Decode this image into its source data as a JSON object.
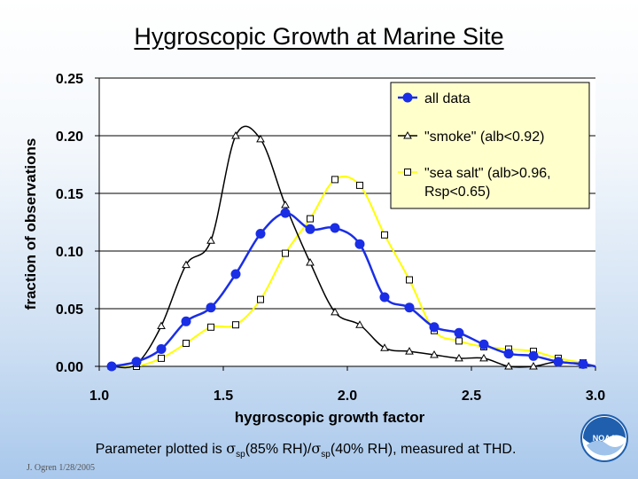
{
  "title": "Hygroscopic Growth at Marine Site",
  "caption": {
    "prefix": "Parameter plotted is ",
    "sigma": "σ",
    "sub1": "sp",
    "mid": "(85% RH)/",
    "sub2": "sp",
    "suffix": "(40% RH), measured at THD."
  },
  "credit": "J. Ogren 1/28/2005",
  "logo_text": "NOAA",
  "chart_data": {
    "type": "line",
    "title": "Hygroscopic Growth at Marine Site",
    "xlabel": "hygroscopic growth factor",
    "ylabel": "fraction of observations",
    "xlim": [
      1.0,
      3.0
    ],
    "ylim": [
      0.0,
      0.25
    ],
    "xticks": [
      "1.0",
      "1.5",
      "2.0",
      "2.5",
      "3.0"
    ],
    "yticks": [
      "0.00",
      "0.05",
      "0.10",
      "0.15",
      "0.20",
      "0.25"
    ],
    "grid": "horizontal",
    "legend_position": "top-right",
    "colors": {
      "all_data": "#1a2ee6",
      "smoke": "#000000",
      "sea_salt": "#ffff00",
      "plot_bg": "#ffffff",
      "legend_bg": "#ffffcc"
    },
    "series": [
      {
        "name": "all data",
        "marker": "circle",
        "x": [
          1.05,
          1.15,
          1.25,
          1.35,
          1.45,
          1.55,
          1.65,
          1.75,
          1.85,
          1.95,
          2.05,
          2.15,
          2.25,
          2.35,
          2.45,
          2.55,
          2.65,
          2.75,
          2.85,
          2.95
        ],
        "y": [
          0.0,
          0.004,
          0.015,
          0.039,
          0.051,
          0.08,
          0.115,
          0.133,
          0.119,
          0.12,
          0.106,
          0.06,
          0.051,
          0.034,
          0.029,
          0.019,
          0.011,
          0.009,
          0.004,
          0.002
        ]
      },
      {
        "name": "\"smoke\" (alb<0.92)",
        "marker": "triangle",
        "x": [
          1.05,
          1.15,
          1.25,
          1.35,
          1.45,
          1.55,
          1.65,
          1.75,
          1.85,
          1.95,
          2.05,
          2.15,
          2.25,
          2.35,
          2.45,
          2.55,
          2.65,
          2.75,
          2.85,
          2.95
        ],
        "y": [
          0.0,
          0.002,
          0.035,
          0.088,
          0.109,
          0.2,
          0.197,
          0.14,
          0.09,
          0.047,
          0.036,
          0.016,
          0.013,
          0.01,
          0.007,
          0.007,
          0.0,
          0.0,
          0.004,
          0.001
        ]
      },
      {
        "name": "\"sea salt\" (alb>0.96,",
        "name_line2": "Rsp<0.65)",
        "marker": "square",
        "x": [
          1.05,
          1.15,
          1.25,
          1.35,
          1.45,
          1.55,
          1.65,
          1.75,
          1.85,
          1.95,
          2.05,
          2.15,
          2.25,
          2.35,
          2.45,
          2.55,
          2.65,
          2.75,
          2.85,
          2.95
        ],
        "y": [
          0.0,
          0.0,
          0.007,
          0.02,
          0.034,
          0.036,
          0.058,
          0.098,
          0.128,
          0.162,
          0.157,
          0.114,
          0.075,
          0.031,
          0.022,
          0.017,
          0.015,
          0.013,
          0.007,
          0.003
        ]
      }
    ]
  }
}
